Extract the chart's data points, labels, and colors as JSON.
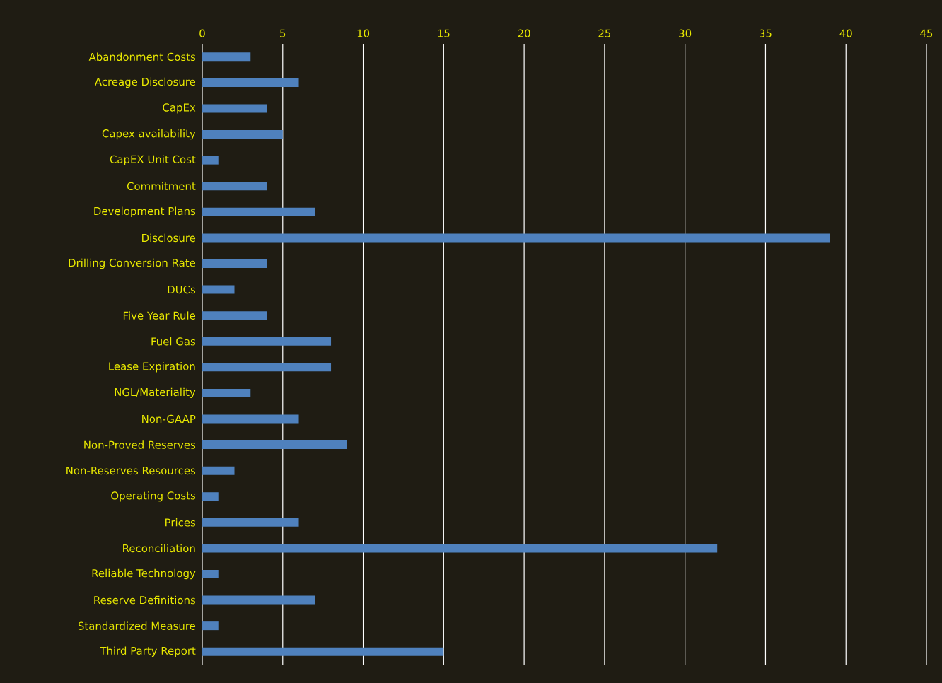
{
  "chart_data": {
    "type": "bar",
    "orientation": "horizontal",
    "categories": [
      "Abandonment Costs",
      "Acreage Disclosure",
      "CapEx",
      "Capex availability",
      "CapEX Unit Cost",
      "Commitment",
      "Development Plans",
      "Disclosure",
      "Drilling Conversion Rate",
      "DUCs",
      "Five Year Rule",
      "Fuel Gas",
      "Lease Expiration",
      "NGL/Materiality",
      "Non-GAAP",
      "Non-Proved Reserves",
      "Non-Reserves Resources",
      "Operating Costs",
      "Prices",
      "Reconciliation",
      "Reliable Technology",
      "Reserve Definitions",
      "Standardized Measure",
      "Third Party Report"
    ],
    "values": [
      3,
      6,
      4,
      5,
      1,
      4,
      7,
      39,
      4,
      2,
      4,
      8,
      8,
      3,
      6,
      9,
      2,
      1,
      6,
      32,
      1,
      7,
      1,
      15
    ],
    "color": "#4f81bd",
    "xlim": [
      0,
      45
    ],
    "xticks": [
      0,
      5,
      10,
      15,
      20,
      25,
      30,
      35,
      40,
      45
    ],
    "grid": "x"
  }
}
